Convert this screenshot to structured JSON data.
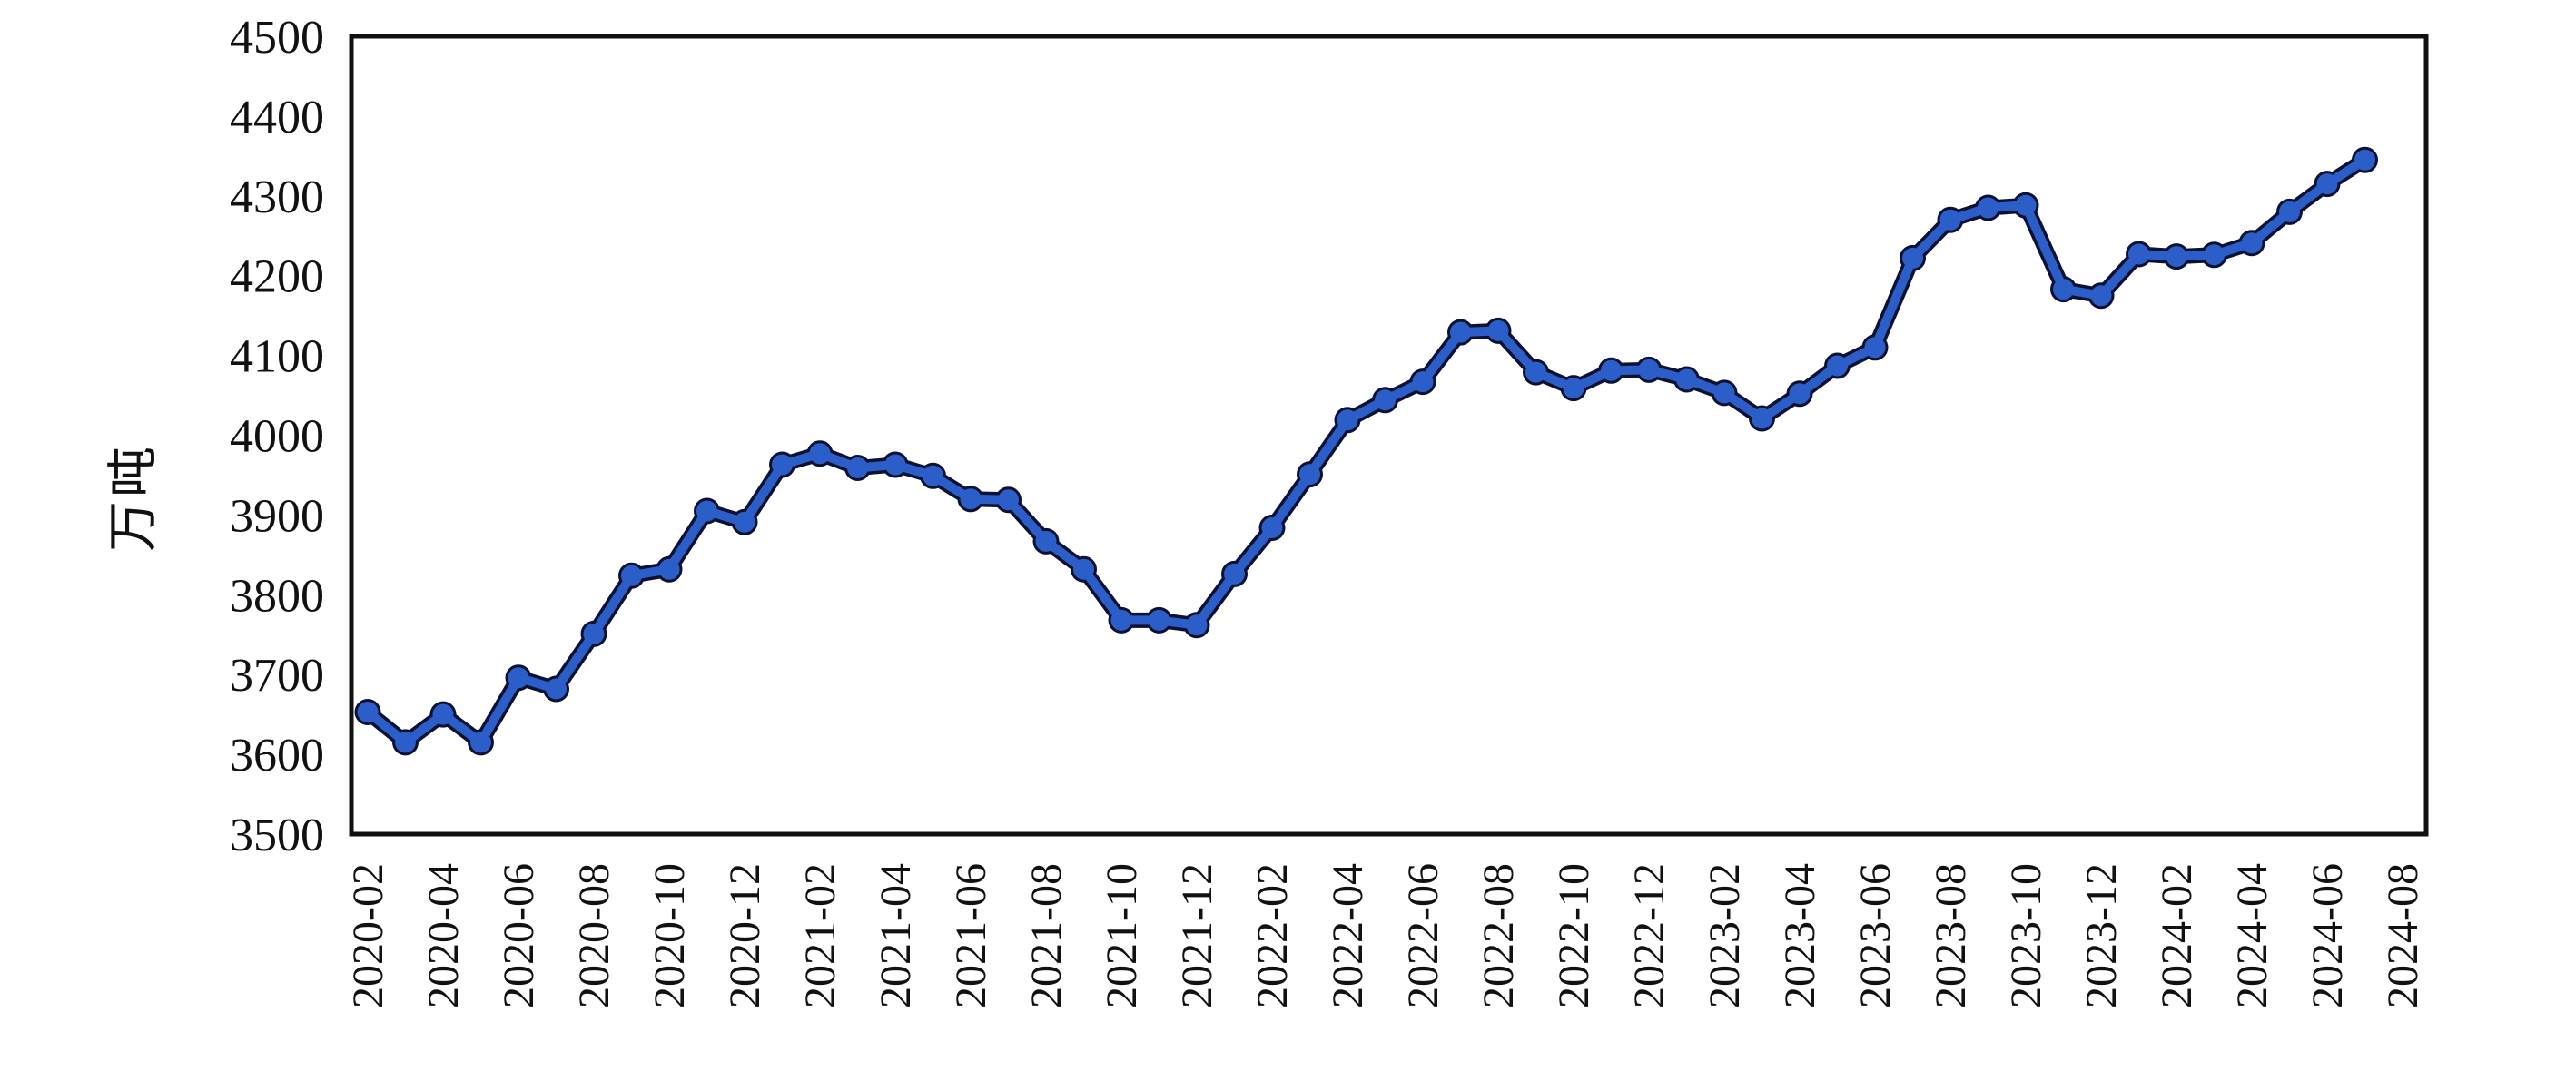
{
  "chart_data": {
    "type": "line",
    "title": "",
    "ylabel": "万吨",
    "xlabel": "",
    "ylim": [
      3500,
      4500
    ],
    "ytick_step": 100,
    "ytick_labels": [
      "3500",
      "3600",
      "3700",
      "3800",
      "3900",
      "4000",
      "4100",
      "4200",
      "4300",
      "4400",
      "4500"
    ],
    "grid": false,
    "legend_position": "none",
    "x": [
      "2020-02",
      "2020-03",
      "2020-04",
      "2020-05",
      "2020-06",
      "2020-07",
      "2020-08",
      "2020-09",
      "2020-10",
      "2020-11",
      "2020-12",
      "2021-01",
      "2021-02",
      "2021-03",
      "2021-04",
      "2021-05",
      "2021-06",
      "2021-07",
      "2021-08",
      "2021-09",
      "2021-10",
      "2021-11",
      "2021-12",
      "2022-01",
      "2022-02",
      "2022-03",
      "2022-04",
      "2022-05",
      "2022-06",
      "2022-07",
      "2022-08",
      "2022-09",
      "2022-10",
      "2022-11",
      "2022-12",
      "2023-01",
      "2023-02",
      "2023-03",
      "2023-04",
      "2023-05",
      "2023-06",
      "2023-07",
      "2023-08",
      "2023-09",
      "2023-10",
      "2023-11",
      "2023-12",
      "2024-01",
      "2024-02",
      "2024-03",
      "2024-04",
      "2024-05",
      "2024-06",
      "2024-07"
    ],
    "xtick_labels": [
      "2020-02",
      "2020-04",
      "2020-06",
      "2020-08",
      "2020-10",
      "2020-12",
      "2021-02",
      "2021-04",
      "2021-06",
      "2021-08",
      "2021-10",
      "2021-12",
      "2022-02",
      "2022-04",
      "2022-06",
      "2022-08",
      "2022-10",
      "2022-12",
      "2023-02",
      "2023-04",
      "2023-06",
      "2023-08",
      "2023-10",
      "2023-12",
      "2024-02",
      "2024-04",
      "2024-06",
      "2024-08"
    ],
    "series": [
      {
        "values": [
          3653,
          3615,
          3650,
          3615,
          3696,
          3682,
          3751,
          3824,
          3832,
          3905,
          3891,
          3963,
          3977,
          3959,
          3963,
          3949,
          3920,
          3919,
          3867,
          3832,
          3768,
          3768,
          3762,
          3826,
          3884,
          3951,
          4019,
          4044,
          4067,
          4129,
          4131,
          4079,
          4059,
          4081,
          4082,
          4070,
          4053,
          4021,
          4052,
          4087,
          4110,
          4222,
          4270,
          4285,
          4288,
          4183,
          4175,
          4227,
          4224,
          4226,
          4241,
          4280,
          4315,
          4345
        ]
      }
    ],
    "line_color": "#2b5ec9",
    "line_outline_color": "#0c1230",
    "marker": "circle",
    "axis_color": "#111111",
    "background_color": "#ffffff"
  }
}
